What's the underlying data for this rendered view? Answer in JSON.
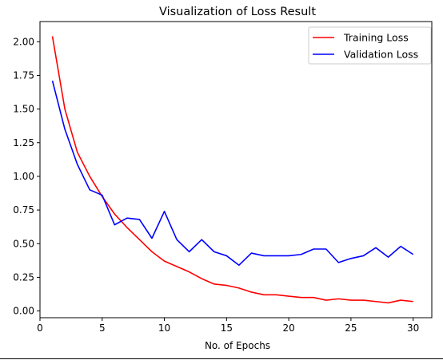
{
  "chart_data": {
    "type": "line",
    "title": "Visualization of Loss Result",
    "xlabel": "No. of Epochs",
    "ylabel": "",
    "xlim": [
      0,
      31.5
    ],
    "ylim": [
      -0.05,
      2.15
    ],
    "x_ticks": [
      0,
      5,
      10,
      15,
      20,
      25,
      30
    ],
    "x_tick_labels": [
      "0",
      "5",
      "10",
      "15",
      "20",
      "25",
      "30"
    ],
    "y_ticks": [
      0.0,
      0.25,
      0.5,
      0.75,
      1.0,
      1.25,
      1.5,
      1.75,
      2.0
    ],
    "y_tick_labels": [
      "0.00",
      "0.25",
      "0.50",
      "0.75",
      "1.00",
      "1.25",
      "1.50",
      "1.75",
      "2.00"
    ],
    "grid": false,
    "legend_position": "top-right",
    "x": [
      1,
      2,
      3,
      4,
      5,
      6,
      7,
      8,
      9,
      10,
      11,
      12,
      13,
      14,
      15,
      16,
      17,
      18,
      19,
      20,
      21,
      22,
      23,
      24,
      25,
      26,
      27,
      28,
      29,
      30
    ],
    "series": [
      {
        "name": "Training Loss",
        "color": "#ff0000",
        "values": [
          2.04,
          1.5,
          1.18,
          1.0,
          0.85,
          0.72,
          0.62,
          0.53,
          0.44,
          0.37,
          0.33,
          0.29,
          0.24,
          0.2,
          0.19,
          0.17,
          0.14,
          0.12,
          0.12,
          0.11,
          0.1,
          0.1,
          0.08,
          0.09,
          0.08,
          0.08,
          0.07,
          0.06,
          0.08,
          0.07
        ]
      },
      {
        "name": "Validation Loss",
        "color": "#0000ff",
        "values": [
          1.71,
          1.35,
          1.09,
          0.9,
          0.86,
          0.64,
          0.69,
          0.68,
          0.54,
          0.74,
          0.53,
          0.44,
          0.53,
          0.44,
          0.41,
          0.34,
          0.43,
          0.41,
          0.41,
          0.41,
          0.42,
          0.46,
          0.46,
          0.36,
          0.39,
          0.41,
          0.47,
          0.4,
          0.48,
          0.42
        ]
      }
    ]
  }
}
